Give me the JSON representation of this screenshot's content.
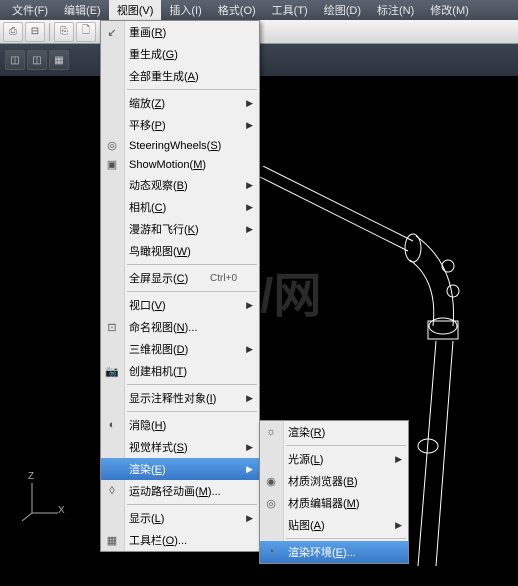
{
  "menubar": {
    "items": [
      {
        "label": "文件(F)"
      },
      {
        "label": "编辑(E)"
      },
      {
        "label": "视图(V)"
      },
      {
        "label": "插入(I)"
      },
      {
        "label": "格式(O)"
      },
      {
        "label": "工具(T)"
      },
      {
        "label": "绘图(D)"
      },
      {
        "label": "标注(N)"
      },
      {
        "label": "修改(M)"
      }
    ],
    "active_index": 2
  },
  "main_menu": {
    "items": [
      {
        "label": "重画(R)",
        "icon": "↙"
      },
      {
        "label": "重生成(G)"
      },
      {
        "label": "全部重生成(A)"
      },
      {
        "sep": true
      },
      {
        "label": "缩放(Z)",
        "arrow": true
      },
      {
        "label": "平移(P)",
        "arrow": true
      },
      {
        "label": "SteeringWheels(S)",
        "icon": "◎"
      },
      {
        "label": "ShowMotion(M)",
        "icon": "▣"
      },
      {
        "label": "动态观察(B)",
        "arrow": true
      },
      {
        "label": "相机(C)",
        "arrow": true
      },
      {
        "label": "漫游和飞行(K)",
        "arrow": true
      },
      {
        "label": "鸟瞰视图(W)"
      },
      {
        "sep": true
      },
      {
        "label": "全屏显示(C)",
        "shortcut": "Ctrl+0"
      },
      {
        "sep": true
      },
      {
        "label": "视口(V)",
        "arrow": true
      },
      {
        "label": "命名视图(N)...",
        "icon": "⊡"
      },
      {
        "label": "三维视图(D)",
        "arrow": true
      },
      {
        "label": "创建相机(T)",
        "icon": "📷"
      },
      {
        "sep": true
      },
      {
        "label": "显示注释性对象(I)",
        "arrow": true
      },
      {
        "sep": true
      },
      {
        "label": "消隐(H)",
        "icon": "◐"
      },
      {
        "label": "视觉样式(S)",
        "arrow": true
      },
      {
        "label": "渲染(E)",
        "arrow": true,
        "highlighted": true
      },
      {
        "label": "运动路径动画(M)...",
        "icon": "◊"
      },
      {
        "sep": true
      },
      {
        "label": "显示(L)",
        "arrow": true
      },
      {
        "label": "工具栏(O)...",
        "icon": "▦"
      }
    ]
  },
  "sub_menu": {
    "items": [
      {
        "label": "渲染(R)",
        "icon": "☼"
      },
      {
        "sep": true
      },
      {
        "label": "光源(L)",
        "arrow": true
      },
      {
        "label": "材质浏览器(B)",
        "icon": "◉"
      },
      {
        "label": "材质编辑器(M)",
        "icon": "◎"
      },
      {
        "label": "贴图(A)",
        "arrow": true
      },
      {
        "sep": true
      },
      {
        "label": "渲染环境(E)...",
        "icon": "◔",
        "highlighted": true
      }
    ]
  },
  "watermark": "/网",
  "ucs": {
    "z": "Z",
    "x": "X"
  },
  "colors": {
    "menubar_bg": "#4a525e",
    "menu_bg": "#f0f0f0",
    "highlight": "#4888d8",
    "viewport_bg": "#000000",
    "wireframe": "#ffffff"
  }
}
